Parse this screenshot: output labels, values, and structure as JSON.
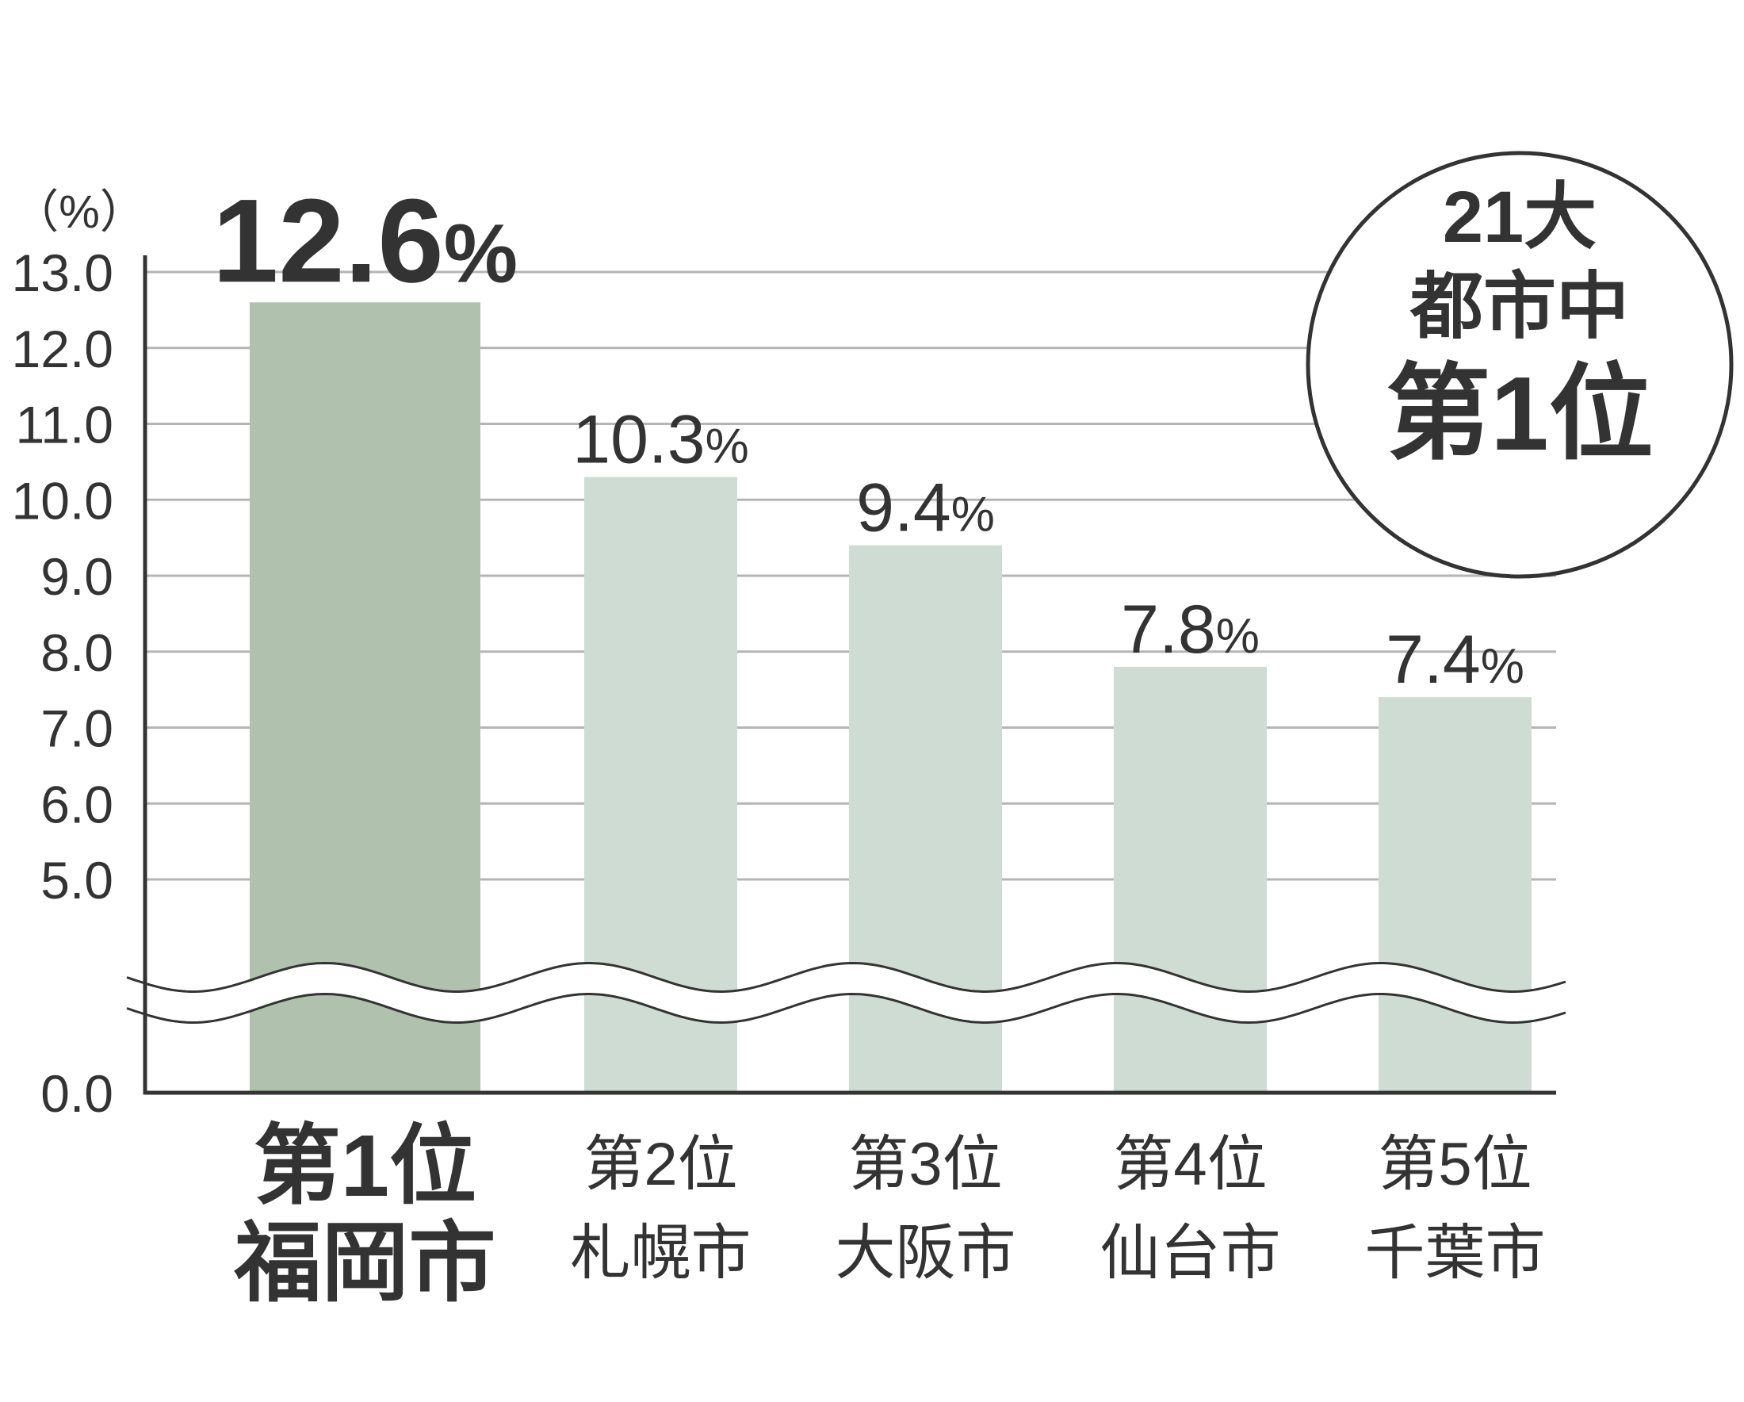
{
  "chart_data": {
    "type": "bar",
    "ylabel": "（%）",
    "ylim": [
      0,
      13
    ],
    "axis_break": [
      0,
      5
    ],
    "grid": true,
    "y_ticks": [
      "0.0",
      "5.0",
      "6.0",
      "7.0",
      "8.0",
      "9.0",
      "10.0",
      "11.0",
      "12.0",
      "13.0"
    ],
    "categories": [
      {
        "rank": "第1位",
        "city": "福岡市"
      },
      {
        "rank": "第2位",
        "city": "札幌市"
      },
      {
        "rank": "第3位",
        "city": "大阪市"
      },
      {
        "rank": "第4位",
        "city": "仙台市"
      },
      {
        "rank": "第5位",
        "city": "千葉市"
      }
    ],
    "values": [
      12.6,
      10.3,
      9.4,
      7.8,
      7.4
    ],
    "value_labels": [
      "12.6",
      "10.3",
      "9.4",
      "7.8",
      "7.4"
    ],
    "percent_sign": "%",
    "colors": {
      "highlight": "#b0c2ae",
      "normal": "#cedcd4",
      "grid": "#b5b5b5",
      "axis": "#333333"
    }
  },
  "badge": {
    "line1": "21大",
    "line2": "都市中",
    "line3": "第1位"
  }
}
